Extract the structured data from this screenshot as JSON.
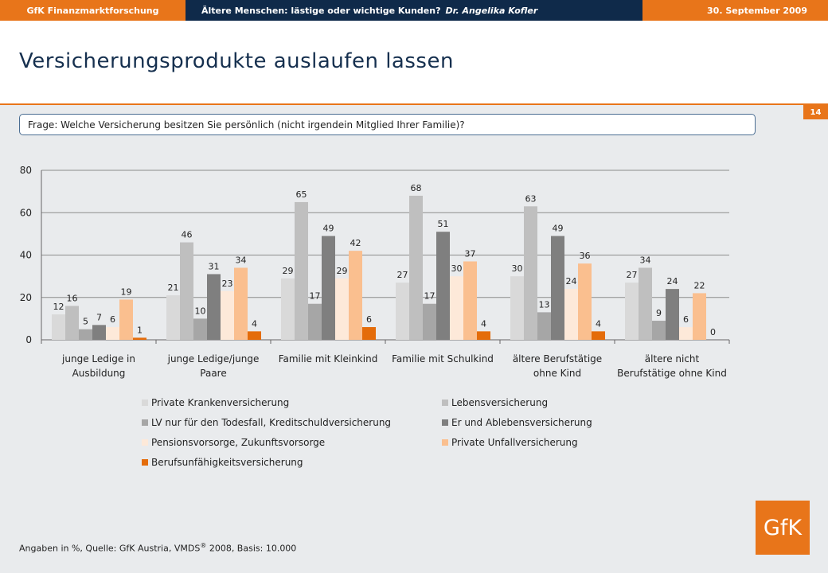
{
  "header": {
    "left": "GfK Finanzmarktforschung",
    "middle": "Ältere Menschen: lästige oder wichtige Kunden?",
    "middle_author": "Dr. Angelika Kofler",
    "right": "30. September 2009"
  },
  "title": "Versicherungsprodukte auslaufen lassen",
  "page_number": "14",
  "question": "Frage: Welche Versicherung besitzen Sie persönlich (nicht irgendein Mitglied Ihrer Familie)?",
  "footer": {
    "prefix": "Angaben in %, Quelle: GfK Austria, VMDS",
    "sup": "®",
    "suffix": " 2008, Basis: 10.000"
  },
  "logo_text": "GfK",
  "colors": {
    "accent": "#e8751a",
    "navy": "#0f2a4a"
  },
  "chart_data": {
    "type": "bar",
    "title": "",
    "xlabel": "",
    "ylabel": "",
    "ylim": [
      0,
      80
    ],
    "yticks": [
      0,
      20,
      40,
      60,
      80
    ],
    "grid": true,
    "categories": [
      [
        "junge Ledige in",
        "Ausbildung"
      ],
      [
        "junge Ledige/junge",
        "Paare"
      ],
      [
        "Familie mit Kleinkind"
      ],
      [
        "Familie mit Schulkind"
      ],
      [
        "ältere Berufstätige",
        "ohne Kind"
      ],
      [
        "ältere nicht",
        "Berufstätige ohne Kind"
      ]
    ],
    "series": [
      {
        "name": "Private Krankenversicherung",
        "color": "#d9d9d9",
        "values": [
          12,
          21,
          29,
          27,
          30,
          27
        ]
      },
      {
        "name": "Lebensversicherung",
        "color": "#bfbfbf",
        "values": [
          16,
          46,
          65,
          68,
          63,
          34
        ]
      },
      {
        "name": "LV nur für den Todesfall, Kreditschuldversicherung",
        "color": "#a6a6a6",
        "values": [
          5,
          10,
          17,
          17,
          13,
          9
        ]
      },
      {
        "name": "Er und Ablebensversicherung",
        "color": "#7f7f7f",
        "values": [
          7,
          31,
          49,
          51,
          49,
          24
        ]
      },
      {
        "name": "Pensionsvorsorge, Zukunftsvorsorge",
        "color": "#fde9d9",
        "values": [
          6,
          23,
          29,
          30,
          24,
          6
        ]
      },
      {
        "name": "Private Unfallversicherung",
        "color": "#fabf8f",
        "values": [
          19,
          34,
          42,
          37,
          36,
          22
        ]
      },
      {
        "name": "Berufsunfähigkeitsversicherung",
        "color": "#e46c0a",
        "values": [
          1,
          4,
          6,
          4,
          4,
          0
        ]
      }
    ]
  }
}
